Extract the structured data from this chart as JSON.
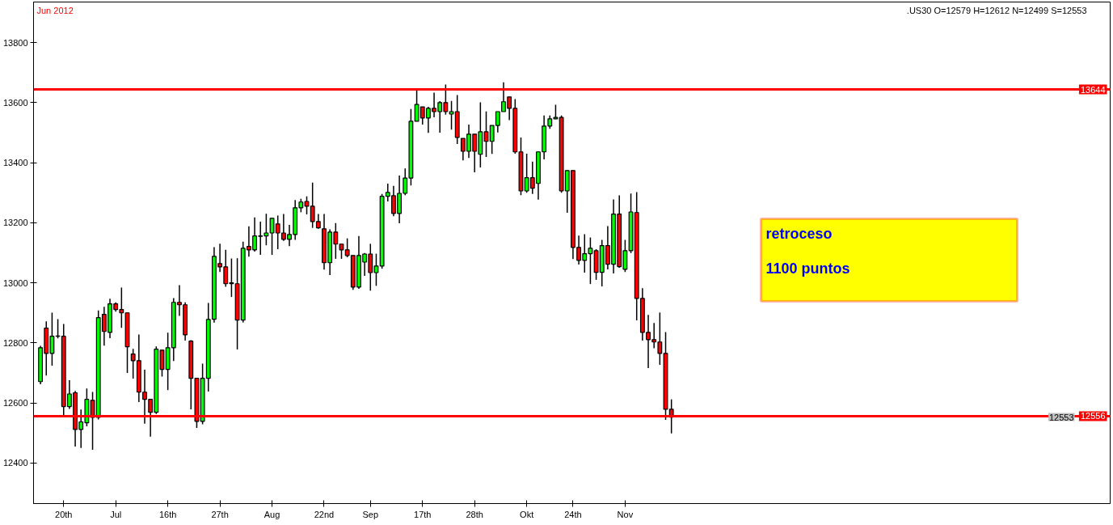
{
  "chart_data": {
    "type": "candlestick",
    "categories": [
      null,
      null,
      null,
      null,
      "20th",
      null,
      null,
      null,
      null,
      null,
      null,
      null,
      null,
      "Jul",
      null,
      null,
      null,
      null,
      null,
      null,
      null,
      null,
      "16th",
      null,
      null,
      null,
      null,
      null,
      null,
      null,
      null,
      "27th",
      null,
      null,
      null,
      null,
      null,
      null,
      null,
      null,
      "Aug",
      null,
      null,
      null,
      null,
      null,
      null,
      null,
      null,
      "22nd",
      null,
      null,
      null,
      null,
      null,
      null,
      null,
      "Sep",
      null,
      null,
      null,
      null,
      null,
      null,
      null,
      null,
      "17th",
      null,
      null,
      null,
      null,
      null,
      null,
      null,
      null,
      "28th",
      null,
      null,
      null,
      null,
      null,
      null,
      null,
      null,
      "Okt",
      null,
      null,
      null,
      null,
      null,
      null,
      null,
      "24th",
      null,
      null,
      null,
      null,
      null,
      null,
      null,
      null,
      "Nov",
      null,
      null,
      null,
      null,
      null,
      null,
      null,
      null
    ],
    "ohlc": [
      [
        12671,
        12790,
        12662,
        12784
      ],
      [
        12849,
        12872,
        12691,
        12765
      ],
      [
        12765,
        12901,
        12724,
        12822
      ],
      [
        12822,
        12879,
        12815,
        12823
      ],
      [
        12822,
        12863,
        12558,
        12588
      ],
      [
        12588,
        12676,
        12580,
        12630
      ],
      [
        12634,
        12640,
        12455,
        12512
      ],
      [
        12512,
        12578,
        12450,
        12537
      ],
      [
        12534,
        12648,
        12522,
        12612
      ],
      [
        12609,
        12637,
        12444,
        12552
      ],
      [
        12552,
        12908,
        12545,
        12884
      ],
      [
        12895,
        12920,
        12791,
        12838
      ],
      [
        12835,
        12947,
        12816,
        12930
      ],
      [
        12930,
        12935,
        12904,
        12911
      ],
      [
        12911,
        12984,
        12850,
        12900
      ],
      [
        12900,
        12900,
        12700,
        12787
      ],
      [
        12763,
        12780,
        12681,
        12741
      ],
      [
        12741,
        12828,
        12603,
        12636
      ],
      [
        12636,
        12711,
        12531,
        12612
      ],
      [
        12612,
        12612,
        12488,
        12569
      ],
      [
        12569,
        12788,
        12563,
        12779
      ],
      [
        12776,
        12776,
        12688,
        12712
      ],
      [
        12712,
        12834,
        12643,
        12784
      ],
      [
        12784,
        12949,
        12740,
        12935
      ],
      [
        12935,
        12992,
        12890,
        12927
      ],
      [
        12927,
        12935,
        12808,
        12827
      ],
      [
        12806,
        12809,
        12579,
        12682
      ],
      [
        12682,
        12682,
        12517,
        12539
      ],
      [
        12539,
        12731,
        12529,
        12682
      ],
      [
        12682,
        12933,
        12638,
        12878
      ],
      [
        12879,
        13119,
        12868,
        13088
      ],
      [
        13064,
        13130,
        13036,
        13053
      ],
      [
        13053,
        13110,
        12987,
        12997
      ],
      [
        13000,
        13081,
        12953,
        12997
      ],
      [
        12997,
        13082,
        12778,
        12876
      ],
      [
        12876,
        13137,
        12868,
        13115
      ],
      [
        13121,
        13188,
        13087,
        13110
      ],
      [
        13110,
        13218,
        13104,
        13156
      ],
      [
        13155,
        13204,
        13093,
        13156
      ],
      [
        13156,
        13230,
        13125,
        13166
      ],
      [
        13166,
        13215,
        13093,
        13215
      ],
      [
        13196,
        13224,
        13112,
        13166
      ],
      [
        13166,
        13229,
        13140,
        13145
      ],
      [
        13145,
        13193,
        13122,
        13161
      ],
      [
        13161,
        13276,
        13143,
        13250
      ],
      [
        13250,
        13280,
        13235,
        13269
      ],
      [
        13271,
        13288,
        13228,
        13255
      ],
      [
        13255,
        13334,
        13183,
        13204
      ],
      [
        13204,
        13229,
        13180,
        13183
      ],
      [
        13180,
        13229,
        13044,
        13067
      ],
      [
        13067,
        13178,
        13026,
        13169
      ],
      [
        13169,
        13199,
        13080,
        13129
      ],
      [
        13129,
        13129,
        13080,
        13110
      ],
      [
        13110,
        13148,
        13085,
        13091
      ],
      [
        13091,
        13091,
        12977,
        12986
      ],
      [
        12986,
        13156,
        12980,
        13091
      ],
      [
        13069,
        13099,
        13023,
        13096
      ],
      [
        13096,
        13130,
        12974,
        13034
      ],
      [
        13034,
        13097,
        12990,
        13056
      ],
      [
        13056,
        13296,
        13047,
        13288
      ],
      [
        13288,
        13330,
        13271,
        13301
      ],
      [
        13290,
        13323,
        13222,
        13231
      ],
      [
        13231,
        13357,
        13198,
        13298
      ],
      [
        13298,
        13381,
        13292,
        13349
      ],
      [
        13349,
        13579,
        13324,
        13538
      ],
      [
        13538,
        13642,
        13538,
        13594
      ],
      [
        13586,
        13586,
        13527,
        13549
      ],
      [
        13549,
        13586,
        13499,
        13581
      ],
      [
        13581,
        13633,
        13551,
        13570
      ],
      [
        13570,
        13605,
        13500,
        13600
      ],
      [
        13600,
        13660,
        13560,
        13570
      ],
      [
        13562,
        13606,
        13510,
        13570
      ],
      [
        13570,
        13625,
        13462,
        13484
      ],
      [
        13481,
        13481,
        13408,
        13438
      ],
      [
        13438,
        13527,
        13416,
        13495
      ],
      [
        13495,
        13495,
        13368,
        13438
      ],
      [
        13428,
        13601,
        13384,
        13503
      ],
      [
        13503,
        13571,
        13419,
        13471
      ],
      [
        13471,
        13524,
        13429,
        13524
      ],
      [
        13524,
        13570,
        13501,
        13570
      ],
      [
        13570,
        13668,
        13570,
        13603
      ],
      [
        13619,
        13619,
        13542,
        13581
      ],
      [
        13581,
        13612,
        13430,
        13436
      ],
      [
        13436,
        13484,
        13292,
        13306
      ],
      [
        13306,
        13430,
        13300,
        13350
      ],
      [
        13350,
        13404,
        13296,
        13315
      ],
      [
        13331,
        13438,
        13277,
        13436
      ],
      [
        13436,
        13557,
        13411,
        13522
      ],
      [
        13522,
        13557,
        13513,
        13546
      ],
      [
        13546,
        13593,
        13545,
        13551
      ],
      [
        13551,
        13557,
        13300,
        13306
      ],
      [
        13306,
        13374,
        13233,
        13374
      ],
      [
        13374,
        13374,
        13079,
        13118
      ],
      [
        13118,
        13157,
        13061,
        13075
      ],
      [
        13075,
        13162,
        13034,
        13097
      ],
      [
        13097,
        13151,
        12996,
        13115
      ],
      [
        13107,
        13112,
        13010,
        13035
      ],
      [
        13035,
        13143,
        12988,
        13124
      ],
      [
        13124,
        13189,
        13045,
        13062
      ],
      [
        13062,
        13278,
        13031,
        13229
      ],
      [
        13229,
        13291,
        13050,
        13054
      ],
      [
        13045,
        13143,
        13036,
        13107
      ],
      [
        13107,
        13297,
        13099,
        13236
      ],
      [
        13234,
        13302,
        12875,
        12948
      ],
      [
        12948,
        12982,
        12808,
        12835
      ],
      [
        12835,
        12893,
        12716,
        12811
      ],
      [
        12811,
        12866,
        12782,
        12803
      ],
      [
        12803,
        12901,
        12727,
        12765
      ],
      [
        12765,
        12836,
        12544,
        12579
      ],
      [
        12579,
        12612,
        12499,
        12553
      ]
    ],
    "colors": [
      "#00ff00",
      "#ff0000",
      "#00ff00",
      "#00ff00",
      "#ff0000",
      "#00ff00",
      "#ff0000",
      "#00ff00",
      "#00ff00",
      "#ff0000",
      "#00ff00",
      "#ff0000",
      "#00ff00",
      "#ff0000",
      "#ff0000",
      "#ff0000",
      "#ff0000",
      "#ff0000",
      "#ff0000",
      "#ff0000",
      "#00ff00",
      "#ff0000",
      "#00ff00",
      "#00ff00",
      "#ff0000",
      "#ff0000",
      "#ff0000",
      "#ff0000",
      "#00ff00",
      "#00ff00",
      "#00ff00",
      "#ff0000",
      "#ff0000",
      "#ff0000",
      "#ff0000",
      "#00ff00",
      "#ff0000",
      "#00ff00",
      "#00ff00",
      "#00ff00",
      "#00ff00",
      "#ff0000",
      "#ff0000",
      "#00ff00",
      "#00ff00",
      "#00ff00",
      "#ff0000",
      "#ff0000",
      "#ff0000",
      "#ff0000",
      "#00ff00",
      "#ff0000",
      "#ff0000",
      "#ff0000",
      "#ff0000",
      "#00ff00",
      "#00ff00",
      "#ff0000",
      "#00ff00",
      "#00ff00",
      "#00ff00",
      "#ff0000",
      "#00ff00",
      "#00ff00",
      "#00ff00",
      "#00ff00",
      "#ff0000",
      "#00ff00",
      "#ff0000",
      "#00ff00",
      "#ff0000",
      "#00ff00",
      "#ff0000",
      "#ff0000",
      "#00ff00",
      "#ff0000",
      "#00ff00",
      "#ff0000",
      "#00ff00",
      "#00ff00",
      "#00ff00",
      "#ff0000",
      "#ff0000",
      "#ff0000",
      "#00ff00",
      "#ff0000",
      "#00ff00",
      "#00ff00",
      "#00ff00",
      "#00ff00",
      "#ff0000",
      "#00ff00",
      "#ff0000",
      "#ff0000",
      "#00ff00",
      "#00ff00",
      "#ff0000",
      "#00ff00",
      "#ff0000",
      "#00ff00",
      "#ff0000",
      "#00ff00",
      "#00ff00",
      "#ff0000",
      "#ff0000",
      "#ff0000",
      "#ff0000",
      "#ff0000",
      "#ff0000",
      "#ff0000"
    ],
    "ylim": [
      12265,
      13935
    ],
    "yticks": [
      12400,
      12600,
      12800,
      13000,
      13200,
      13400,
      13600,
      13800
    ],
    "grid": false,
    "ref_lines": [
      {
        "axis": "y",
        "value": 13644,
        "label": "13644",
        "color": "#ff0000"
      },
      {
        "axis": "y",
        "value": 12556,
        "label": "12556",
        "color": "#ff0000"
      }
    ],
    "annotations": [
      "Jun 2012",
      ".US30 O=12579 H=12612 N=12499 S=12553",
      "retroceso",
      "1100 puntos",
      {
        "text": "12553",
        "y": 12553
      }
    ]
  }
}
